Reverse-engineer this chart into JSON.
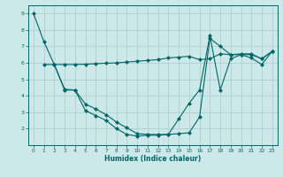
{
  "bg_color": "#cce8e8",
  "grid_color": "#aacccc",
  "line_color": "#006666",
  "xlabel": "Humidex (Indice chaleur)",
  "xlim": [
    -0.5,
    23.5
  ],
  "ylim": [
    1.0,
    9.5
  ],
  "yticks": [
    2,
    3,
    4,
    5,
    6,
    7,
    8,
    9
  ],
  "xticks": [
    0,
    1,
    2,
    3,
    4,
    5,
    6,
    7,
    8,
    9,
    10,
    11,
    12,
    13,
    14,
    15,
    16,
    17,
    18,
    19,
    20,
    21,
    22,
    23
  ],
  "line1_x": [
    0,
    1,
    2,
    3,
    4,
    5,
    6,
    7,
    8,
    9,
    10,
    11,
    12,
    13,
    14,
    15,
    16,
    17,
    18,
    19,
    20,
    21,
    22,
    23
  ],
  "line1_y": [
    9.0,
    7.3,
    5.9,
    4.4,
    4.35,
    3.1,
    2.8,
    2.5,
    2.0,
    1.65,
    1.55,
    1.6,
    1.6,
    1.65,
    2.6,
    3.55,
    4.35,
    7.65,
    4.35,
    6.25,
    6.5,
    6.3,
    5.9,
    6.7
  ],
  "line2_x": [
    1,
    2,
    3,
    4,
    5,
    6,
    7,
    8,
    9,
    10,
    11,
    12,
    13,
    14,
    15,
    16,
    17,
    18,
    19,
    20,
    21,
    22,
    23
  ],
  "line2_y": [
    5.9,
    5.9,
    5.9,
    5.9,
    5.92,
    5.95,
    5.98,
    6.0,
    6.05,
    6.1,
    6.15,
    6.2,
    6.3,
    6.35,
    6.4,
    6.2,
    6.25,
    6.55,
    6.5,
    6.55,
    6.55,
    6.25,
    6.7
  ],
  "line3_x": [
    2,
    3,
    4,
    5,
    6,
    7,
    8,
    9,
    10,
    11,
    12,
    13,
    14,
    15,
    16,
    17,
    18,
    19,
    20,
    21,
    22,
    23
  ],
  "line3_y": [
    5.9,
    4.35,
    4.35,
    3.5,
    3.2,
    2.85,
    2.4,
    2.05,
    1.7,
    1.65,
    1.65,
    1.65,
    1.7,
    1.75,
    2.7,
    7.5,
    7.0,
    6.5,
    6.5,
    6.5,
    6.25,
    6.7
  ]
}
